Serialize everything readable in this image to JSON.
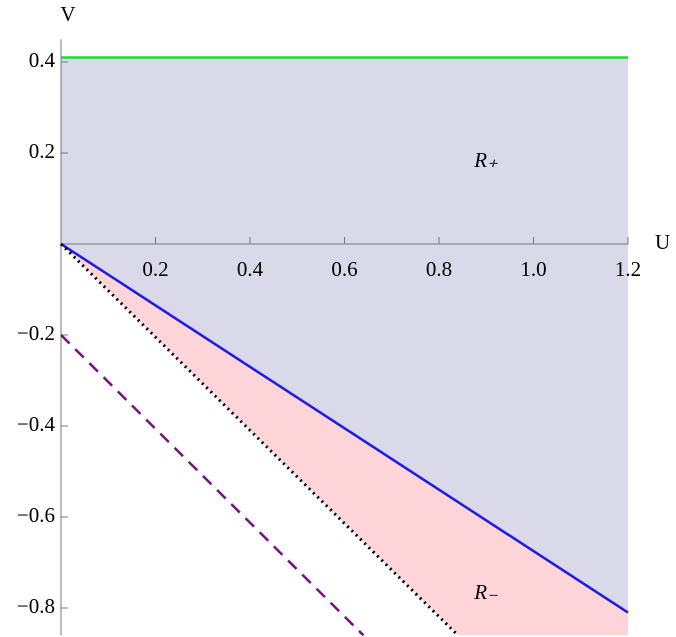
{
  "chart_data": {
    "type": "line",
    "x_label": "U",
    "y_label": "V",
    "xlim": [
      0,
      1.2
    ],
    "ylim": [
      -0.86,
      0.45
    ],
    "xticks": [
      0.2,
      0.4,
      0.6,
      0.8,
      {
        "value": 1.0,
        "label": "1.0"
      },
      1.2
    ],
    "yticks": [
      {
        "value": -0.8,
        "label": "−0.8"
      },
      {
        "value": -0.6,
        "label": "−0.6"
      },
      {
        "value": -0.4,
        "label": "−0.4"
      },
      {
        "value": -0.2,
        "label": "−0.2"
      },
      0.2,
      0.4
    ],
    "series": [
      {
        "color": "#22dd22",
        "style": "solid",
        "x": [
          0,
          1.2
        ],
        "values": [
          0.41,
          0.41
        ]
      },
      {
        "color": "#1a1aee",
        "style": "solid",
        "x": [
          0,
          1.2
        ],
        "values": [
          0,
          -0.81
        ]
      },
      {
        "color": "#000000",
        "style": "dotted",
        "x": [
          0,
          0.84
        ],
        "values": [
          0,
          -0.86
        ]
      },
      {
        "color": "#7a1080",
        "style": "dashed",
        "x": [
          0,
          0.64
        ],
        "values": [
          -0.2,
          -0.86
        ]
      }
    ],
    "regions": [
      {
        "label": "R₊",
        "color": "#d9d9ea"
      },
      {
        "label": "R₋",
        "color": "#fdd5d8"
      }
    ]
  }
}
